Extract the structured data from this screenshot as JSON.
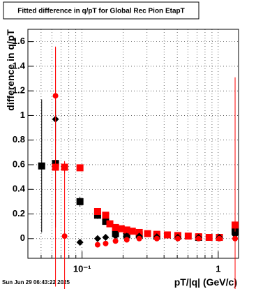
{
  "chart_data": {
    "type": "scatter",
    "title": "Fitted difference in q/pT for Global Rec Pion EtapT",
    "xlabel": "pT/|q| (GeV/c)",
    "ylabel": "difference in q/pT",
    "footer": "Sun Jun 29 06:43:22 2025",
    "xscale": "log",
    "grid": true,
    "xlim": [
      0.04,
      1.41
    ],
    "ylim": [
      -0.16,
      1.7
    ],
    "xticks": [
      {
        "value": 0.1,
        "label": "10⁻¹"
      },
      1
    ],
    "xminorticks": [
      0.05,
      0.06,
      0.07,
      0.08,
      0.09,
      0.2,
      0.3,
      0.4,
      0.5,
      0.6,
      0.7,
      0.8,
      0.9
    ],
    "yticks": [
      0,
      0.2,
      0.4,
      0.6,
      0.8,
      1,
      1.2,
      1.4,
      1.6
    ],
    "series": [
      {
        "marker": "square",
        "color": "#000000",
        "x": [
          0.0505,
          0.0638,
          0.0965,
          0.13,
          0.149,
          0.176,
          0.213,
          0.263,
          0.354,
          0.505,
          0.718,
          1.02,
          1.33
        ],
        "values": [
          0.59,
          0.61,
          0.3,
          0.19,
          0.14,
          0.04,
          0.03,
          0.03,
          0.02,
          0.02,
          0.01,
          0.01,
          0.06
        ],
        "errors": [
          0.54,
          0.52,
          0.04,
          0.03,
          0.02,
          0.01,
          0.01,
          0.01,
          0.01,
          0.01,
          0.01,
          0.01,
          0.02
        ]
      },
      {
        "marker": "square",
        "color": "#ff0000",
        "x": [
          0.0638,
          0.0744,
          0.0965,
          0.13,
          0.149,
          0.16,
          0.176,
          0.194,
          0.213,
          0.234,
          0.263,
          0.303,
          0.354,
          0.423,
          0.505,
          0.602,
          0.718,
          0.857,
          1.02,
          1.33
        ],
        "values": [
          0.58,
          0.58,
          0.575,
          0.22,
          0.19,
          0.12,
          0.09,
          0.08,
          0.07,
          0.06,
          0.05,
          0.04,
          0.035,
          0.03,
          0.025,
          0.02,
          0.015,
          0.01,
          0.01,
          0.11
        ],
        "errors": [
          0.97,
          0.05,
          0.02,
          0.02,
          0.02,
          0.01,
          0.01,
          0.01,
          0.01,
          0.01,
          0.01,
          0.01,
          0.01,
          0.01,
          0.01,
          0.01,
          0.01,
          0.01,
          0.01,
          1.2
        ]
      },
      {
        "marker": "diamond",
        "color": "#000000",
        "x": [
          0.0638,
          0.0965,
          0.13,
          0.149,
          0.176,
          0.213,
          0.263,
          0.354,
          0.505,
          0.718,
          1.02,
          1.33
        ],
        "values": [
          0.97,
          -0.03,
          0.0,
          0.01,
          0.02,
          0.02,
          0.02,
          0.015,
          0.01,
          0.01,
          0.01,
          0.03
        ],
        "errors": [
          0.15,
          0.02,
          0.01,
          0.01,
          0.01,
          0.01,
          0.01,
          0.01,
          0.01,
          0.01,
          0.01,
          0.01
        ]
      },
      {
        "marker": "circle",
        "color": "#ff0000",
        "x": [
          0.0638,
          0.0744,
          0.13,
          0.149,
          0.176,
          0.213,
          0.263,
          0.354,
          0.505,
          0.718,
          1.02,
          1.33
        ],
        "values": [
          1.16,
          0.02,
          -0.05,
          -0.04,
          -0.02,
          -0.01,
          0.0,
          0.0,
          0.0,
          0.0,
          0.0,
          0.0
        ],
        "errors": [
          0.4,
          0.6,
          0.01,
          0.01,
          0.01,
          0.01,
          0.01,
          0.01,
          0.01,
          0.01,
          0.01,
          0.01
        ]
      }
    ]
  }
}
